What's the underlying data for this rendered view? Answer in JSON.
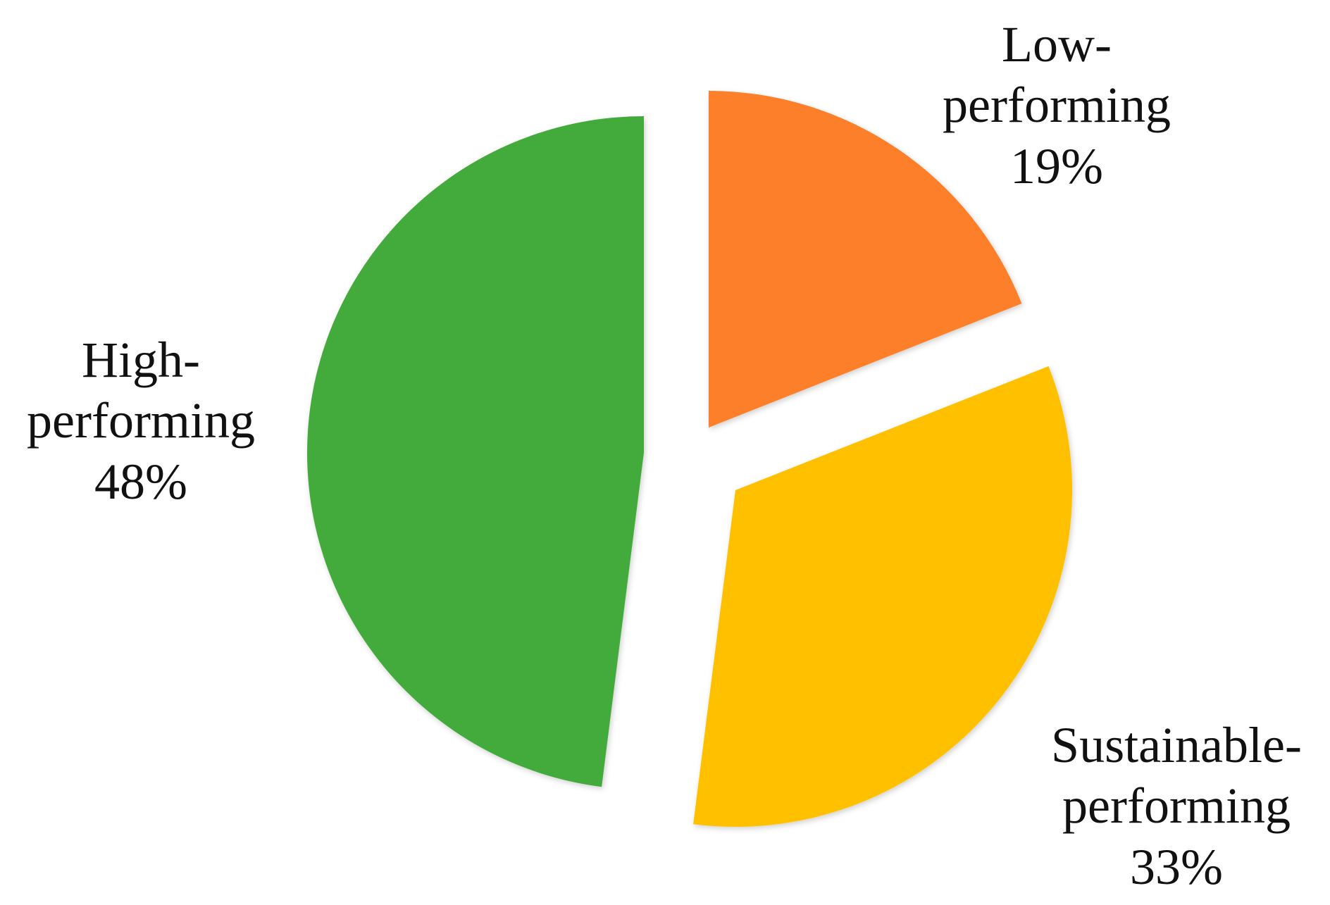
{
  "chart_data": {
    "type": "pie",
    "categories": [
      "Low-performing",
      "Sustainable-performing",
      "High-performing"
    ],
    "values": [
      19,
      33,
      48
    ],
    "value_labels": [
      "19%",
      "33%",
      "48%"
    ],
    "colors": [
      "#fe7f2a",
      "#ffc000",
      "#43ab3b"
    ]
  }
}
